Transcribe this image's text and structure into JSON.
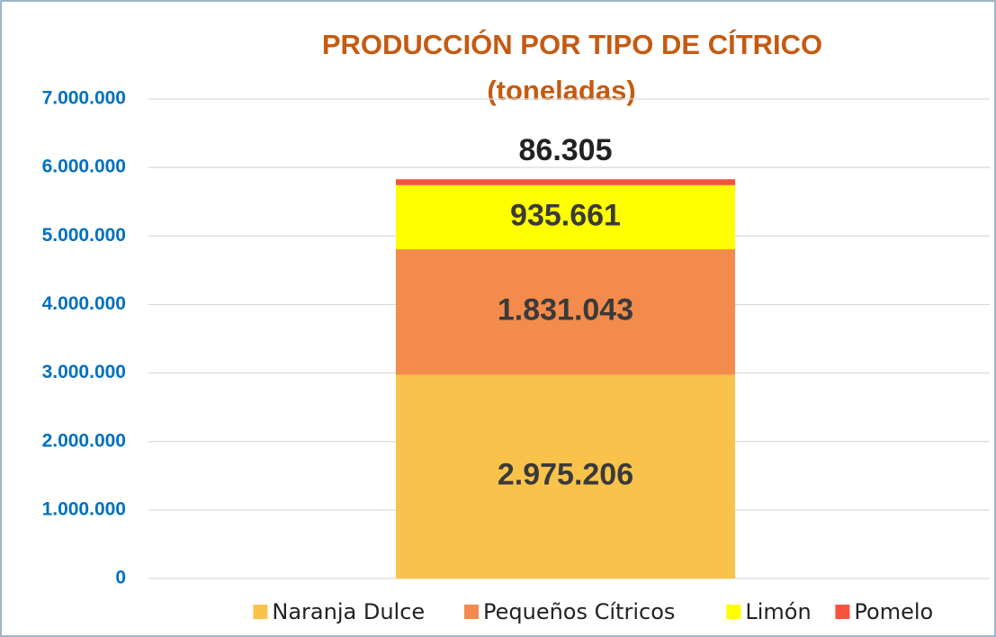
{
  "chart_data": {
    "type": "stacked_bar",
    "title": "PRODUCCIÓN POR TIPO DE CÍTRICO",
    "subtitle": "(toneladas)",
    "categories": [
      null
    ],
    "series": [
      {
        "name": "Naranja Dulce",
        "color": "#f9c34b",
        "values": [
          2975206
        ],
        "value_labels": [
          "2.975.206"
        ]
      },
      {
        "name": "Pequeños Cítricos",
        "color": "#f28b4c",
        "values": [
          1831043
        ],
        "value_labels": [
          "1.831.043"
        ]
      },
      {
        "name": "Limón",
        "color": "#ffff00",
        "values": [
          935661
        ],
        "value_labels": [
          "935.661"
        ]
      },
      {
        "name": "Pomelo",
        "color": "#f8533e",
        "values": [
          86305
        ],
        "value_labels": [
          "86.305"
        ]
      }
    ],
    "ylim": [
      0,
      7000000
    ],
    "yticks": [
      0,
      {
        "value": 1000000,
        "label": "1.000.000"
      },
      {
        "value": 2000000,
        "label": "2.000.000"
      },
      {
        "value": 3000000,
        "label": "3.000.000"
      },
      {
        "value": 4000000,
        "label": "4.000.000"
      },
      {
        "value": 5000000,
        "label": "5.000.000"
      },
      {
        "value": 6000000,
        "label": "6.000.000"
      },
      {
        "value": 7000000,
        "label": "7.000.000"
      }
    ],
    "grid": true,
    "legend": "bottom"
  }
}
